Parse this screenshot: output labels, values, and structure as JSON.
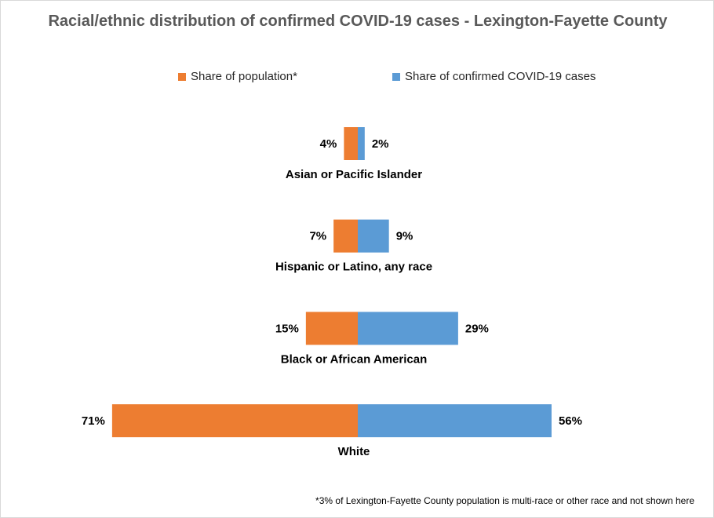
{
  "title": "Racial/ethnic distribution of confirmed COVID-19 cases -  Lexington-Fayette County",
  "legend": {
    "population_label": "Share of population*",
    "cases_label": "Share of confirmed COVID-19 cases"
  },
  "colors": {
    "population": "#ED7D31",
    "cases": "#5B9BD5"
  },
  "footnote": "*3% of Lexington-Fayette County population is multi-race or other race and not shown here",
  "chart_data": {
    "type": "bar",
    "orientation": "horizontal-butterfly",
    "title": "Racial/ethnic distribution of confirmed COVID-19 cases -  Lexington-Fayette County",
    "categories": [
      "Asian or Pacific Islander",
      "Hispanic or Latino, any race",
      "Black or African American",
      "White"
    ],
    "series": [
      {
        "name": "Share of population*",
        "values": [
          4,
          7,
          15,
          71
        ],
        "labels": [
          "4%",
          "7%",
          "15%",
          "71%"
        ],
        "direction": "left"
      },
      {
        "name": "Share of confirmed COVID-19 cases",
        "values": [
          2,
          9,
          29,
          56
        ],
        "labels": [
          "2%",
          "9%",
          "29%",
          "56%"
        ],
        "direction": "right"
      }
    ],
    "unit": "%",
    "legend_position": "top",
    "grid": false
  }
}
